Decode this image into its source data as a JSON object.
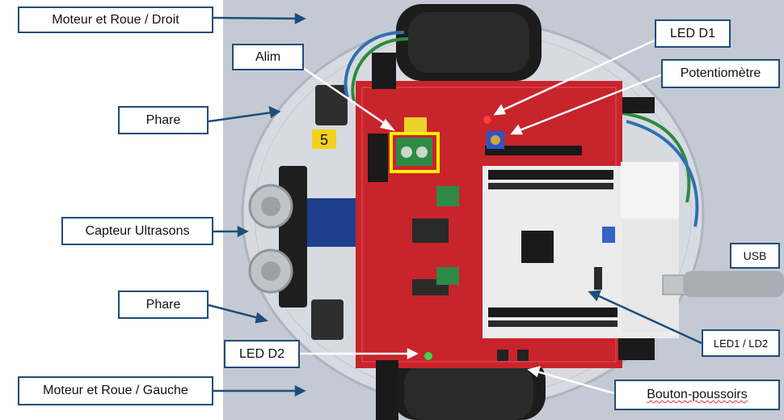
{
  "board": {
    "number_tag": "5"
  },
  "labels": {
    "moteur_droit": "Moteur et Roue / Droit",
    "alim": "Alim",
    "phare_top": "Phare",
    "capteur": "Capteur Ultrasons",
    "phare_bottom": "Phare",
    "led_d2": "LED D2",
    "moteur_gauche": "Moteur et Roue / Gauche",
    "led_d1": "LED D1",
    "potentiometre": "Potentiomètre",
    "usb": "USB",
    "led1_ld2": "LED1 / LD2",
    "bouton": "Bouton-poussoirs"
  },
  "colors": {
    "label_border": "#1f4e79",
    "arrow_dark": "#1f4e79",
    "arrow_white": "#ffffff",
    "board_red": "#c8242b",
    "highlight": "#ffee00",
    "nucleo": "#ececec"
  }
}
